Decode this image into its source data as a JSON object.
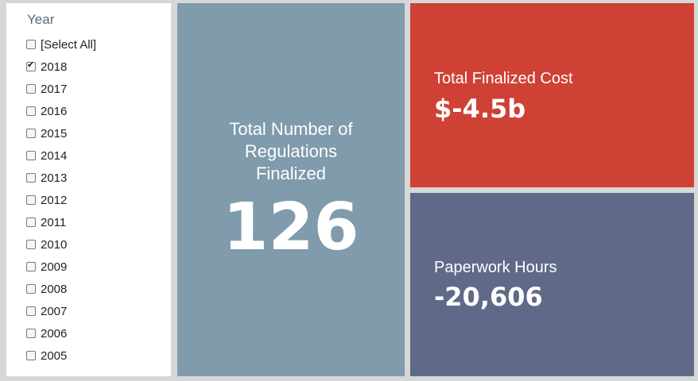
{
  "filter": {
    "title": "Year",
    "options": [
      {
        "label": "[Select All]",
        "checked": false
      },
      {
        "label": "2018",
        "checked": true
      },
      {
        "label": "2017",
        "checked": false
      },
      {
        "label": "2016",
        "checked": false
      },
      {
        "label": "2015",
        "checked": false
      },
      {
        "label": "2014",
        "checked": false
      },
      {
        "label": "2013",
        "checked": false
      },
      {
        "label": "2012",
        "checked": false
      },
      {
        "label": "2011",
        "checked": false
      },
      {
        "label": "2010",
        "checked": false
      },
      {
        "label": "2009",
        "checked": false
      },
      {
        "label": "2008",
        "checked": false
      },
      {
        "label": "2007",
        "checked": false
      },
      {
        "label": "2006",
        "checked": false
      },
      {
        "label": "2005",
        "checked": false
      }
    ]
  },
  "tiles": {
    "regulations": {
      "label": "Total Number of Regulations Finalized",
      "value": "126",
      "color": "#7f9bac"
    },
    "cost": {
      "label": "Total Finalized Cost",
      "value": "$-4.5b",
      "color": "#cf4135"
    },
    "hours": {
      "label": "Paperwork Hours",
      "value": "-20,606",
      "color": "#606a88"
    }
  }
}
